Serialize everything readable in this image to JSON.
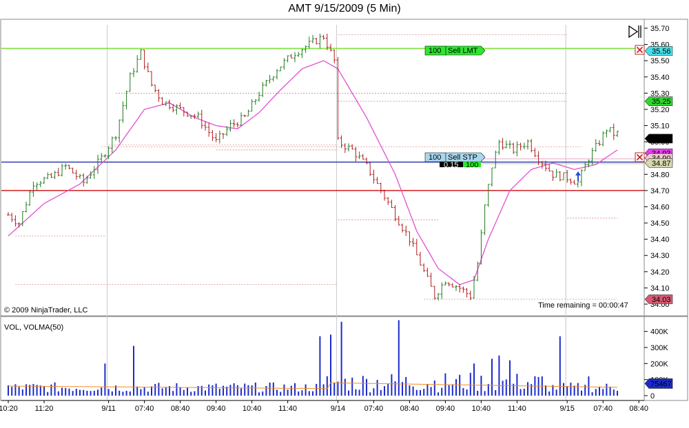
{
  "chart_data": {
    "type": "candlestick",
    "title": "AMT  9/15/2009 (5 Min)",
    "copyright": "© 2009 NinjaTrader, LLC",
    "time_remaining": "Time remaining = 00:00:47",
    "price_axis": {
      "range": [
        34.0,
        35.7
      ],
      "ticks": [
        "35.70",
        "35.60",
        "35.50",
        "35.40",
        "35.30",
        "35.20",
        "35.10",
        "35.00",
        "34.90",
        "34.80",
        "34.70",
        "34.60",
        "34.50",
        "34.40",
        "34.30",
        "34.20",
        "34.10",
        "34.00"
      ]
    },
    "x_ticks": [
      {
        "i": 0,
        "label": "10:20"
      },
      {
        "i": 10,
        "label": "11:20"
      },
      {
        "i": 28,
        "label": "9/11"
      },
      {
        "i": 38,
        "label": "07:40"
      },
      {
        "i": 48,
        "label": "08:40"
      },
      {
        "i": 58,
        "label": "09:40"
      },
      {
        "i": 68,
        "label": "10:40"
      },
      {
        "i": 78,
        "label": "11:40"
      },
      {
        "i": 92,
        "label": "9/14"
      },
      {
        "i": 102,
        "label": "07:40"
      },
      {
        "i": 112,
        "label": "08:40"
      },
      {
        "i": 122,
        "label": "09:40"
      },
      {
        "i": 132,
        "label": "10:40"
      },
      {
        "i": 142,
        "label": "11:40"
      },
      {
        "i": 156,
        "label": "9/15"
      },
      {
        "i": 166,
        "label": "07:40"
      },
      {
        "i": 176,
        "label": "08:40"
      }
    ],
    "session_breaks": [
      28,
      92,
      156
    ],
    "anchors": [
      [
        0,
        34.55
      ],
      [
        3,
        34.5
      ],
      [
        7,
        34.75
      ],
      [
        12,
        34.78
      ],
      [
        16,
        34.85
      ],
      [
        21,
        34.75
      ],
      [
        26,
        34.9
      ],
      [
        30,
        35.05
      ],
      [
        34,
        35.4
      ],
      [
        37,
        35.55
      ],
      [
        40,
        35.35
      ],
      [
        43,
        35.25
      ],
      [
        48,
        35.2
      ],
      [
        53,
        35.15
      ],
      [
        58,
        35.0
      ],
      [
        62,
        35.1
      ],
      [
        66,
        35.15
      ],
      [
        70,
        35.3
      ],
      [
        75,
        35.45
      ],
      [
        80,
        35.55
      ],
      [
        84,
        35.6
      ],
      [
        88,
        35.65
      ],
      [
        91,
        35.5
      ],
      [
        92,
        35.0
      ],
      [
        96,
        34.95
      ],
      [
        100,
        34.85
      ],
      [
        104,
        34.7
      ],
      [
        108,
        34.55
      ],
      [
        112,
        34.4
      ],
      [
        116,
        34.2
      ],
      [
        119,
        34.05
      ],
      [
        122,
        34.15
      ],
      [
        126,
        34.1
      ],
      [
        129,
        34.05
      ],
      [
        131,
        34.25
      ],
      [
        133,
        34.6
      ],
      [
        135,
        34.85
      ],
      [
        137,
        35.0
      ],
      [
        141,
        34.95
      ],
      [
        145,
        35.0
      ],
      [
        148,
        34.9
      ],
      [
        152,
        34.8
      ],
      [
        156,
        34.78
      ],
      [
        159,
        34.75
      ],
      [
        162,
        34.9
      ],
      [
        165,
        35.0
      ],
      [
        167,
        35.08
      ],
      [
        169,
        35.05
      ]
    ],
    "sma_anchors": [
      [
        0,
        34.42
      ],
      [
        10,
        34.62
      ],
      [
        20,
        34.74
      ],
      [
        30,
        34.95
      ],
      [
        38,
        35.2
      ],
      [
        45,
        35.24
      ],
      [
        52,
        35.15
      ],
      [
        58,
        35.1
      ],
      [
        64,
        35.08
      ],
      [
        70,
        35.18
      ],
      [
        76,
        35.32
      ],
      [
        82,
        35.45
      ],
      [
        88,
        35.5
      ],
      [
        92,
        35.45
      ],
      [
        100,
        35.15
      ],
      [
        108,
        34.8
      ],
      [
        114,
        34.45
      ],
      [
        120,
        34.22
      ],
      [
        126,
        34.12
      ],
      [
        130,
        34.15
      ],
      [
        134,
        34.4
      ],
      [
        140,
        34.7
      ],
      [
        146,
        34.83
      ],
      [
        152,
        34.87
      ],
      [
        158,
        34.83
      ],
      [
        164,
        34.86
      ],
      [
        170,
        34.95
      ]
    ],
    "horizontal_lines": [
      {
        "name": "sell-limit-line",
        "price": 35.575,
        "color": "#7ee03a"
      },
      {
        "name": "stop-line",
        "price": 34.875,
        "color": "#3a49b5"
      },
      {
        "name": "support-line",
        "price": 34.7,
        "color": "#d11c1c"
      }
    ],
    "price_labels": [
      {
        "text": "35.56",
        "price": 35.56,
        "bg": "#48e0e8"
      },
      {
        "text": "35.25",
        "price": 35.25,
        "bg": "#2fd62f"
      },
      {
        "text": "35.02",
        "price": 35.02,
        "bg": "#000000",
        "fg": "#ffffff"
      },
      {
        "text": "34.93",
        "price": 34.93,
        "bg": "#e33df0"
      },
      {
        "text": "34.90",
        "price": 34.9,
        "bg": "#f2c6d0"
      },
      {
        "text": "34.87",
        "price": 34.87,
        "bg": "#d8d8ae"
      },
      {
        "text": "34.03",
        "price": 34.03,
        "bg": "#d65a72"
      }
    ],
    "orders": [
      {
        "qty": "100",
        "label": "Sell LMT",
        "price": 35.575,
        "bg": "#2ee62e"
      },
      {
        "qty": "100",
        "label": "Sell STP",
        "price": 34.875,
        "bg": "#a8d8f0"
      }
    ],
    "position_box": {
      "qty": "100",
      "pnl": "0.15"
    },
    "volume": {
      "title": "VOL, VOLMA(50)",
      "current": "75467",
      "range": [
        0,
        450000
      ],
      "ticks": [
        "400K",
        "300K",
        "200K",
        "100K",
        "0"
      ],
      "spikes": [
        [
          27,
          200000
        ],
        [
          35,
          310000
        ],
        [
          87,
          370000
        ],
        [
          90,
          380000
        ],
        [
          93,
          460000
        ],
        [
          109,
          470000
        ],
        [
          130,
          200000
        ],
        [
          135,
          230000
        ],
        [
          137,
          250000
        ],
        [
          140,
          220000
        ],
        [
          154,
          370000
        ],
        [
          162,
          120000
        ]
      ]
    }
  }
}
